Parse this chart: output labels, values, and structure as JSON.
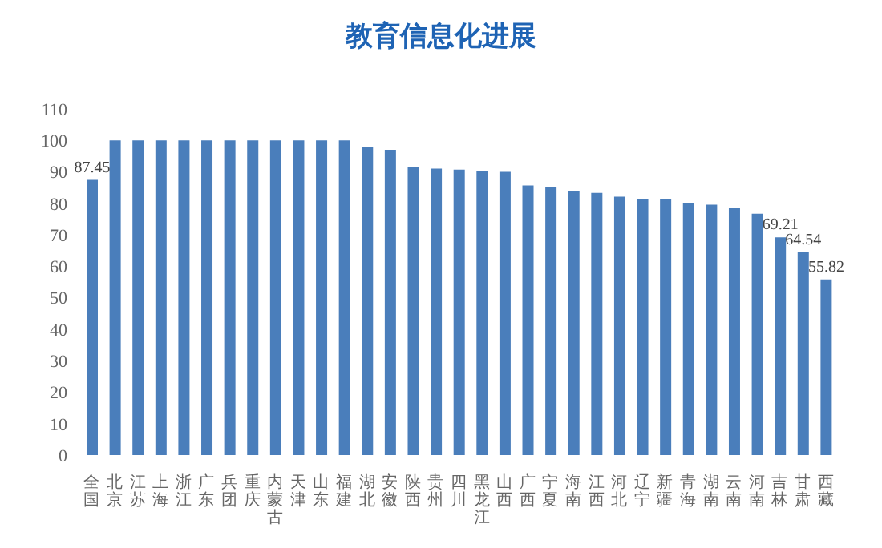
{
  "chart_data": {
    "type": "bar",
    "title": "教育信息化进展",
    "categories": [
      "全国",
      "北京",
      "江苏",
      "上海",
      "浙江",
      "广东",
      "兵团",
      "重庆",
      "内蒙古",
      "天津",
      "山东",
      "福建",
      "湖北",
      "安徽",
      "陕西",
      "贵州",
      "四川",
      "黑龙江",
      "山西",
      "广西",
      "宁夏",
      "海南",
      "江西",
      "河北",
      "辽宁",
      "新疆",
      "青海",
      "湖南",
      "云南",
      "河南",
      "吉林",
      "甘肃",
      "西藏"
    ],
    "values": [
      87.45,
      100,
      100,
      100,
      100,
      100,
      100,
      100,
      100,
      100,
      100,
      100,
      98,
      97,
      91.5,
      91,
      90.7,
      90.3,
      90,
      85.7,
      85.2,
      83.8,
      83.3,
      82.1,
      81.5,
      81.5,
      80.1,
      79.6,
      78.7,
      76.7,
      69.21,
      64.54,
      55.82
    ],
    "value_labels": [
      "87.45",
      null,
      null,
      null,
      null,
      null,
      null,
      null,
      null,
      null,
      null,
      null,
      null,
      null,
      null,
      null,
      null,
      null,
      null,
      null,
      null,
      null,
      null,
      null,
      null,
      null,
      null,
      null,
      null,
      null,
      "69.21",
      "64.54",
      "55.82"
    ],
    "color": "#4a7ebb",
    "ylim": [
      0,
      110
    ],
    "yticks": [
      0,
      10,
      20,
      30,
      40,
      50,
      60,
      70,
      80,
      90,
      100,
      110
    ],
    "grid": false
  }
}
